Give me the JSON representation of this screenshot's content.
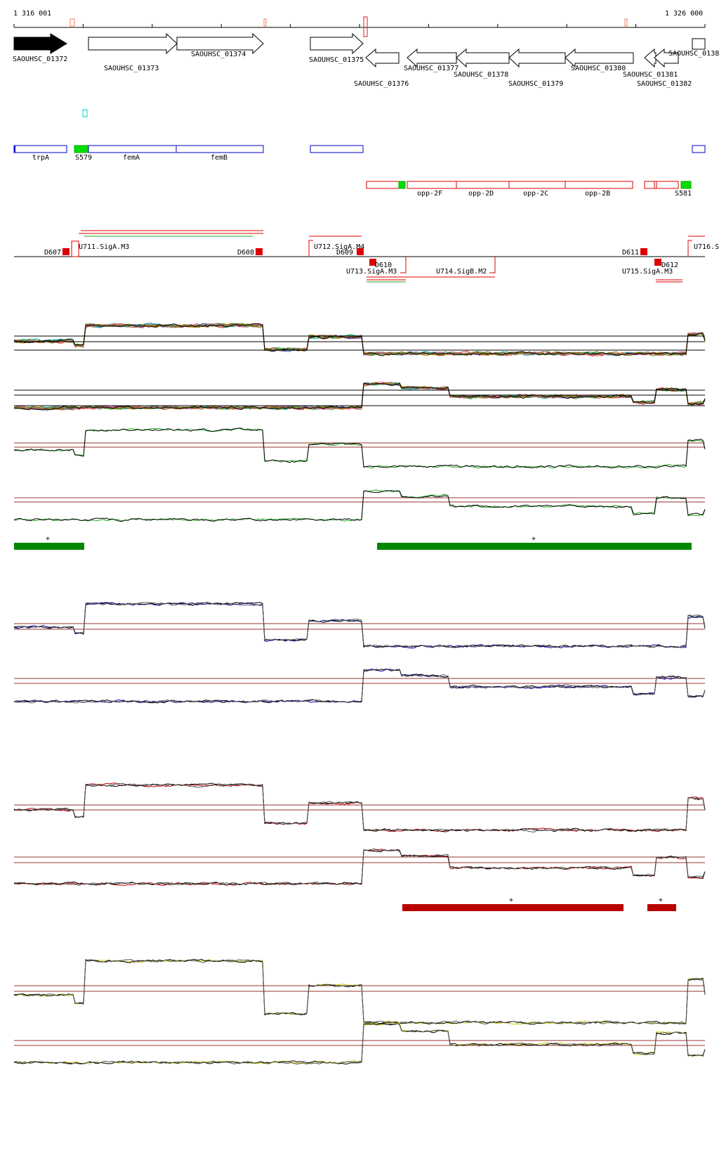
{
  "coords": {
    "start": "1 316 001",
    "end": "1 326 000"
  },
  "genes": [
    {
      "name": "SAOUHSC_01372",
      "strand": "+",
      "filled": true
    },
    {
      "name": "SAOUHSC_01373",
      "strand": "+",
      "filled": false
    },
    {
      "name": "SAOUHSC_01374",
      "strand": "+",
      "filled": false
    },
    {
      "name": "SAOUHSC_01375",
      "strand": "+",
      "filled": false
    },
    {
      "name": "SAOUHSC_01376",
      "strand": "-",
      "filled": false
    },
    {
      "name": "SAOUHSC_01377",
      "strand": "-",
      "filled": false
    },
    {
      "name": "SAOUHSC_01378",
      "strand": "-",
      "filled": false
    },
    {
      "name": "SAOUHSC_01379",
      "strand": "-",
      "filled": false
    },
    {
      "name": "SAOUHSC_01380",
      "strand": "-",
      "filled": false
    },
    {
      "name": "SAOUHSC_01381",
      "strand": "-",
      "filled": false
    },
    {
      "name": "SAOUHSC_01382",
      "strand": "-",
      "filled": false
    },
    {
      "name": "SAOUHSC_0138",
      "strand": "+",
      "filled": false
    }
  ],
  "features_plus": [
    "trpA",
    "S579",
    "femA",
    "femB"
  ],
  "features_minus": [
    "opp-2F",
    "opp-2D",
    "opp-2C",
    "opp-2B",
    "S581"
  ],
  "elements_top": [
    "D607",
    "U711.SigA.M3",
    "D608",
    "U712.SigA.M4",
    "D609",
    "D611",
    "U716.S"
  ],
  "elements_bottom": [
    "D610",
    "U713.SigA.M3",
    "U714.SigB.M2",
    "D612",
    "U715.SigA.M3"
  ],
  "segments": {
    "green_marks": [
      "+",
      "+"
    ],
    "red_marks": [
      "+",
      "+"
    ]
  },
  "colors": {
    "gene_outline": "#000000",
    "feature_plus": "#0000cc",
    "feature_minus": "#dd0000",
    "feature_highlight": "#00dd00",
    "segment_green": "#008800",
    "segment_red": "#bb0000",
    "track_blue": "#0000aa",
    "track_yellow": "#cccc00",
    "track_green": "#22aa22",
    "threshold": "#993333"
  }
}
